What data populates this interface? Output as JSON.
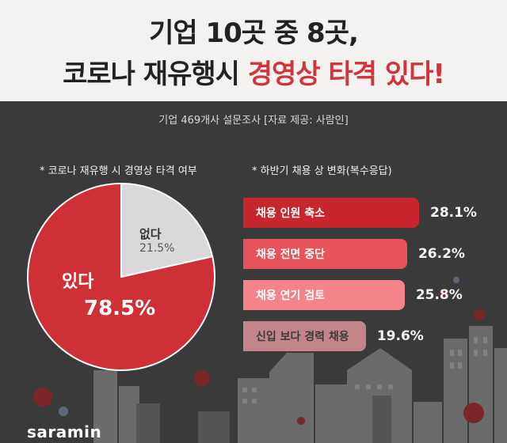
{
  "header": {
    "title_line1": "기업 10곳 중 8곳,",
    "title_line2_prefix": "코로나 재유행시 ",
    "title_line2_highlight": "경영상 타격 있다!",
    "source": "기업 469개사 설문조사 [자료 제공: 사람인]"
  },
  "pie_section": {
    "heading": "* 코로나 재유행 시 경영상 타격 여부"
  },
  "bar_section": {
    "heading": "* 하반기 채용 상 변화(복수응답)"
  },
  "chart_data": [
    {
      "type": "pie",
      "title": "* 코로나 재유행 시 경영상 타격 여부",
      "slices": [
        {
          "label": "있다",
          "value": 78.5,
          "display": "78.5%",
          "color": "#cf2f36"
        },
        {
          "label": "없다",
          "value": 21.5,
          "display": "21.5%",
          "color": "#d9d9d9"
        }
      ]
    },
    {
      "type": "bar",
      "orientation": "horizontal",
      "title": "* 하반기 채용 상 변화(복수응답)",
      "categories": [
        "채용 인원 축소",
        "채용 전면 중단",
        "채용 연기 검토",
        "신입 보다 경력 채용"
      ],
      "values": [
        28.1,
        26.2,
        25.8,
        19.6
      ],
      "display": [
        "28.1%",
        "26.2%",
        "25.8%",
        "19.6%"
      ],
      "colors": [
        "#c8262f",
        "#e8525a",
        "#f4848a",
        "#c3858b"
      ],
      "label_colors": [
        "#ffffff",
        "#ffffff",
        "#ffffff",
        "#3a3a3a"
      ]
    }
  ],
  "logo": "saramin"
}
